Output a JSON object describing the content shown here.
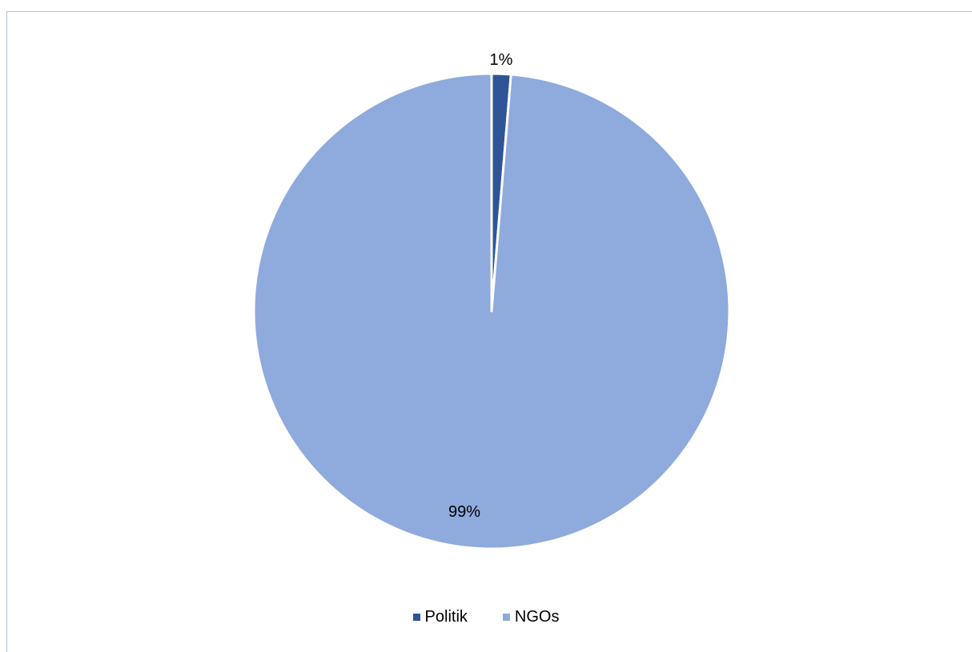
{
  "chart_data": {
    "type": "pie",
    "title": "",
    "slices": [
      {
        "name": "Politik",
        "value": 1.3,
        "label": "1%",
        "color": "#2f5597"
      },
      {
        "name": "NGOs",
        "value": 98.7,
        "label": "99%",
        "color": "#8faadc"
      }
    ],
    "legend_position": "bottom",
    "data_labels": true
  }
}
